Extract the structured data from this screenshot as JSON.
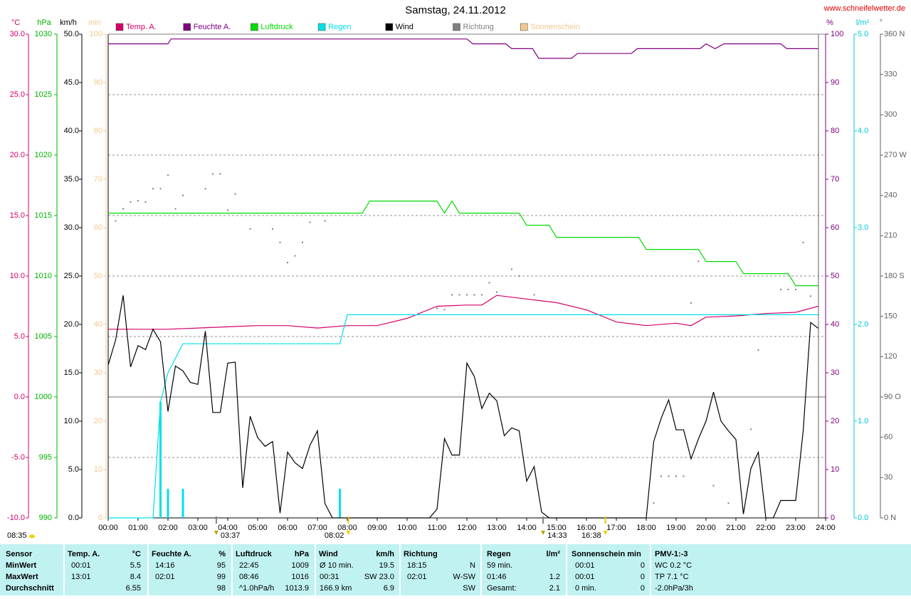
{
  "chart_data": {
    "type": "line",
    "title": "Samstag, 24.11.2012",
    "source": "www.schneifelwetter.de",
    "xlim": [
      0,
      24
    ],
    "xticks": [
      {
        "value": 0,
        "label": "00:00"
      },
      {
        "value": 1,
        "label": "01:00"
      },
      {
        "value": 2,
        "label": "02:00"
      },
      {
        "value": 3,
        "label": "03:00"
      },
      {
        "value": 4,
        "label": "04:00"
      },
      {
        "value": 5,
        "label": "05:00"
      },
      {
        "value": 6,
        "label": "06:00"
      },
      {
        "value": 7,
        "label": "07:00"
      },
      {
        "value": 8,
        "label": "08:00"
      },
      {
        "value": 9,
        "label": "09:00"
      },
      {
        "value": 10,
        "label": "10:00"
      },
      {
        "value": 11,
        "label": "11:00"
      },
      {
        "value": 12,
        "label": "12:00"
      },
      {
        "value": 13,
        "label": "13:00"
      },
      {
        "value": 14,
        "label": "14:00"
      },
      {
        "value": 15,
        "label": "15:00"
      },
      {
        "value": 16,
        "label": "16:00"
      },
      {
        "value": 17,
        "label": "17:00"
      },
      {
        "value": 18,
        "label": "18:00"
      },
      {
        "value": 19,
        "label": "19:00"
      },
      {
        "value": 20,
        "label": "20:00"
      },
      {
        "value": 21,
        "label": "21:00"
      },
      {
        "value": 22,
        "label": "22:00"
      },
      {
        "value": 23,
        "label": "23:00"
      },
      {
        "value": 24,
        "label": "24:00"
      }
    ],
    "grid": true,
    "axes": [
      {
        "unit": "°C",
        "side": "left",
        "color": "#d4006a",
        "lim": [
          -10,
          30
        ],
        "ticks": [
          {
            "value": 30,
            "label": "30.0"
          },
          {
            "value": 25,
            "label": "25.0"
          },
          {
            "value": 20,
            "label": "20.0"
          },
          {
            "value": 15,
            "label": "15.0"
          },
          {
            "value": 10,
            "label": "10.0"
          },
          {
            "value": 5,
            "label": "5.0"
          },
          {
            "value": 0,
            "label": "0.0"
          },
          {
            "value": -5,
            "label": "-5.0"
          },
          {
            "value": -10,
            "label": "-10.0"
          }
        ]
      },
      {
        "unit": "hPa",
        "side": "left",
        "color": "#00b400",
        "lim": [
          990,
          1030
        ],
        "ticks": [
          1030,
          1025,
          1020,
          1015,
          1010,
          1005,
          1000,
          995,
          990
        ]
      },
      {
        "unit": "km/h",
        "side": "left",
        "color": "#000000",
        "lim": [
          0,
          50
        ],
        "ticks": [
          {
            "value": 50,
            "label": "50.0"
          },
          {
            "value": 45,
            "label": "45.0"
          },
          {
            "value": 40,
            "label": "40.0"
          },
          {
            "value": 35,
            "label": "35.0"
          },
          {
            "value": 30,
            "label": "30.0"
          },
          {
            "value": 25,
            "label": "25.0"
          },
          {
            "value": 20,
            "label": "20.0"
          },
          {
            "value": 15,
            "label": "15.0"
          },
          {
            "value": 10,
            "label": "10.0"
          },
          {
            "value": 5,
            "label": "5.0"
          },
          {
            "value": 0,
            "label": "0.0"
          }
        ]
      },
      {
        "unit": "min",
        "side": "left",
        "color": "#f0c890",
        "lim": [
          0,
          100
        ],
        "ticks": [
          100,
          90,
          80,
          70,
          60,
          50,
          40,
          30,
          20,
          10,
          0
        ]
      },
      {
        "unit": "%",
        "side": "right",
        "color": "#800080",
        "lim": [
          0,
          100
        ],
        "ticks": [
          100,
          90,
          80,
          70,
          60,
          50,
          40,
          30,
          20,
          10,
          0
        ]
      },
      {
        "unit": "l/m²",
        "side": "right",
        "color": "#00c8d8",
        "lim": [
          0,
          5
        ],
        "ticks": [
          {
            "value": 5,
            "label": "5.0"
          },
          {
            "value": 4,
            "label": "4.0"
          },
          {
            "value": 3,
            "label": "3.0"
          },
          {
            "value": 2,
            "label": "2.0"
          },
          {
            "value": 1,
            "label": "1.0"
          },
          {
            "value": 0,
            "label": "0.0"
          }
        ]
      },
      {
        "unit": "°",
        "side": "right",
        "color": "#606060",
        "lim": [
          0,
          360
        ],
        "ticks": [
          {
            "value": 360,
            "label": "360 N"
          },
          330,
          300,
          {
            "value": 270,
            "label": "270 W"
          },
          240,
          210,
          {
            "value": 180,
            "label": "180 S"
          },
          150,
          120,
          {
            "value": 90,
            "label": "90 O"
          },
          60,
          30,
          {
            "value": 0,
            "label": "0 N"
          }
        ]
      }
    ],
    "series": [
      {
        "name": "Temp. A.",
        "color": "#d4006a",
        "axis": "°C",
        "style": "line",
        "x": [
          0,
          1,
          2,
          3,
          4,
          5,
          6,
          7,
          8,
          9,
          10,
          11,
          12,
          12.5,
          13,
          14,
          15,
          16,
          17,
          18,
          19,
          19.5,
          20,
          21,
          22,
          23,
          23.75
        ],
        "values": [
          5.6,
          5.6,
          5.6,
          5.7,
          5.8,
          5.9,
          5.9,
          5.7,
          5.9,
          5.9,
          6.5,
          7.5,
          7.6,
          7.6,
          8.4,
          8.1,
          7.8,
          7.2,
          6.2,
          5.9,
          6.1,
          5.9,
          6.6,
          6.7,
          6.9,
          7.0,
          7.5
        ]
      },
      {
        "name": "Feuchte A.",
        "color": "#800080",
        "axis": "%",
        "style": "line",
        "x": [
          0,
          2,
          2.1,
          12,
          12.2,
          13.3,
          13.5,
          14.2,
          14.4,
          15.5,
          15.7,
          17.5,
          17.7,
          19.8,
          20,
          20.3,
          20.6,
          22.5,
          22.7,
          23.75
        ],
        "values": [
          98,
          98,
          99,
          99,
          98,
          98,
          97,
          97,
          95,
          95,
          96,
          96,
          97,
          97,
          98,
          97,
          98,
          98,
          97,
          97
        ]
      },
      {
        "name": "Luftdruck",
        "color": "#00dc00",
        "axis": "hPa",
        "style": "line",
        "x": [
          0,
          8.5,
          8.75,
          11,
          11.25,
          11.5,
          11.75,
          13.75,
          14,
          14.75,
          15,
          17.75,
          18,
          19.75,
          20,
          21,
          21.25,
          22.75,
          23,
          23.75
        ],
        "values": [
          1015.2,
          1015.2,
          1016.2,
          1016.2,
          1015.2,
          1016.2,
          1015.2,
          1015.2,
          1014.2,
          1014.2,
          1013.2,
          1013.2,
          1012.2,
          1012.2,
          1011.2,
          1011.2,
          1010.2,
          1010.2,
          1009.2,
          1009.2
        ]
      },
      {
        "name": "Regen",
        "color": "#00e0e8",
        "axis": "l/m²",
        "style": "line",
        "x": [
          0,
          1.5,
          1.75,
          2,
          2.5,
          7.75,
          8,
          23.75
        ],
        "values": [
          0,
          0,
          1.2,
          1.5,
          1.8,
          1.8,
          2.1,
          2.1
        ],
        "bars": {
          "x": [
            1.75,
            2,
            2.5,
            7.75
          ],
          "values": [
            1.2,
            0.3,
            0.3,
            0.3
          ]
        }
      },
      {
        "name": "Wind",
        "color": "#000000",
        "axis": "km/h",
        "style": "line",
        "x": [
          0,
          0.25,
          0.5,
          0.75,
          1,
          1.25,
          1.5,
          1.75,
          2,
          2.25,
          2.5,
          2.75,
          3,
          3.25,
          3.5,
          3.75,
          4,
          4.25,
          4.5,
          4.75,
          5,
          5.25,
          5.5,
          5.75,
          6,
          6.25,
          6.5,
          6.75,
          7,
          7.25,
          7.5,
          7.75,
          8,
          8.25,
          8.5,
          8.75,
          9,
          9.25,
          9.5,
          9.75,
          10,
          10.25,
          10.5,
          10.75,
          11,
          11.25,
          11.5,
          11.75,
          12,
          12.25,
          12.5,
          12.75,
          13,
          13.25,
          13.5,
          13.75,
          14,
          14.25,
          14.5,
          14.75,
          15,
          15.25,
          15.5,
          15.75,
          16,
          16.25,
          16.5,
          16.75,
          17,
          17.25,
          17.5,
          17.75,
          18,
          18.25,
          18.5,
          18.75,
          19,
          19.25,
          19.5,
          19.75,
          20,
          20.25,
          20.5,
          20.75,
          21,
          21.25,
          21.5,
          21.75,
          22,
          22.25,
          22.5,
          22.75,
          23,
          23.25,
          23.5,
          23.75
        ],
        "values": [
          15.8,
          18.4,
          23.0,
          15.6,
          17.8,
          17.4,
          19.5,
          18.2,
          11.0,
          15.7,
          15.2,
          14.0,
          13.8,
          19.3,
          10.9,
          10.9,
          16.0,
          16.1,
          3.1,
          10.5,
          8.3,
          7.4,
          7.9,
          0.5,
          6.8,
          5.7,
          5.1,
          7.5,
          9.0,
          1.5,
          0,
          0,
          0,
          0,
          0,
          0,
          0,
          0,
          0,
          0,
          0,
          0,
          0,
          0,
          0.9,
          8.2,
          6.5,
          6.5,
          16.0,
          14.6,
          11.3,
          12.9,
          12.1,
          8.5,
          9.3,
          9.0,
          3.8,
          5.3,
          0.6,
          0,
          0,
          0,
          0,
          0,
          0,
          0,
          0,
          0,
          0,
          0,
          0,
          0,
          0,
          7.9,
          10.3,
          12.2,
          9.1,
          9.1,
          6.1,
          8.2,
          10.0,
          13.0,
          10.0,
          9.0,
          8.1,
          0.4,
          5.1,
          6.8,
          0,
          0,
          1.8,
          1.8,
          1.8,
          9.0,
          20.2,
          19.6
        ]
      },
      {
        "name": "Richtung",
        "color": "#808080",
        "axis": "°",
        "style": "points",
        "x": [
          0.25,
          0.5,
          0.75,
          1.0,
          1.25,
          1.5,
          1.75,
          2.0,
          2.25,
          2.5,
          3.25,
          3.5,
          3.75,
          4.0,
          4.25,
          4.75,
          5.5,
          5.75,
          6.0,
          6.25,
          6.5,
          6.75,
          7.25,
          11.0,
          11.25,
          11.5,
          11.75,
          12.0,
          12.25,
          12.5,
          12.75,
          13.0,
          13.5,
          13.75,
          14.25,
          18.25,
          18.5,
          18.75,
          19.0,
          19.25,
          19.5,
          19.75,
          20.25,
          20.75,
          21.5,
          21.75,
          22.5,
          22.75,
          23.0,
          23.25,
          23.5
        ],
        "values": [
          221,
          230,
          235,
          236,
          235,
          245,
          245,
          255,
          230,
          240,
          245,
          256,
          256,
          229,
          241,
          215,
          215,
          205,
          190,
          195,
          205,
          220,
          221,
          156,
          155,
          166,
          166,
          166,
          166,
          166,
          175,
          168,
          185,
          180,
          166,
          11,
          31,
          31,
          31,
          31,
          160,
          191,
          24,
          11,
          66,
          125,
          170,
          170,
          170,
          205,
          165
        ]
      },
      {
        "name": "Sonnenschein",
        "color": "#f0c890",
        "axis": "min",
        "style": "line"
      }
    ],
    "corner_note": "08:35",
    "annotations": [
      {
        "text": "03:37",
        "icon": "moon"
      },
      {
        "text": "08:02",
        "icon": "sun"
      },
      {
        "text": "14:33",
        "icon": "moon"
      },
      {
        "text": "16:38",
        "icon": "sun"
      }
    ]
  },
  "table": {
    "header": [
      "Sensor",
      "Temp. A.",
      "°C",
      "Feuchte A.",
      "%",
      "Luftdruck",
      "hPa",
      "Wind",
      "km/h",
      "Richtung",
      null,
      "Regen",
      "l/m²",
      "Sonnenschein min",
      null,
      "PMV-1:-3"
    ],
    "rows": [
      [
        "MinWert",
        "00:01",
        "5.5",
        "14:16",
        "95",
        "22:45",
        "1009",
        "Ø 10 min.",
        "19.5",
        "18:15",
        "N",
        "59 min.",
        null,
        "00:01",
        "0",
        "WC 0.2 °C"
      ],
      [
        "MaxWert",
        "13:01",
        "8.4",
        "02:01",
        "99",
        "08:46",
        "1016",
        "00:31",
        "SW 23.0",
        "02:01",
        "W-SW",
        "01:46",
        "1.2",
        "00:01",
        "0",
        "TP 7.1 °C"
      ],
      [
        "Durchschnitt",
        null,
        "6.55",
        null,
        "98",
        "^1.0hPa/h",
        "1013.9",
        "166.9 km",
        "6.9",
        null,
        "SW",
        "Gesamt:",
        "2.1",
        "0 min.",
        "0",
        "-2.0hPa/3h"
      ]
    ]
  }
}
